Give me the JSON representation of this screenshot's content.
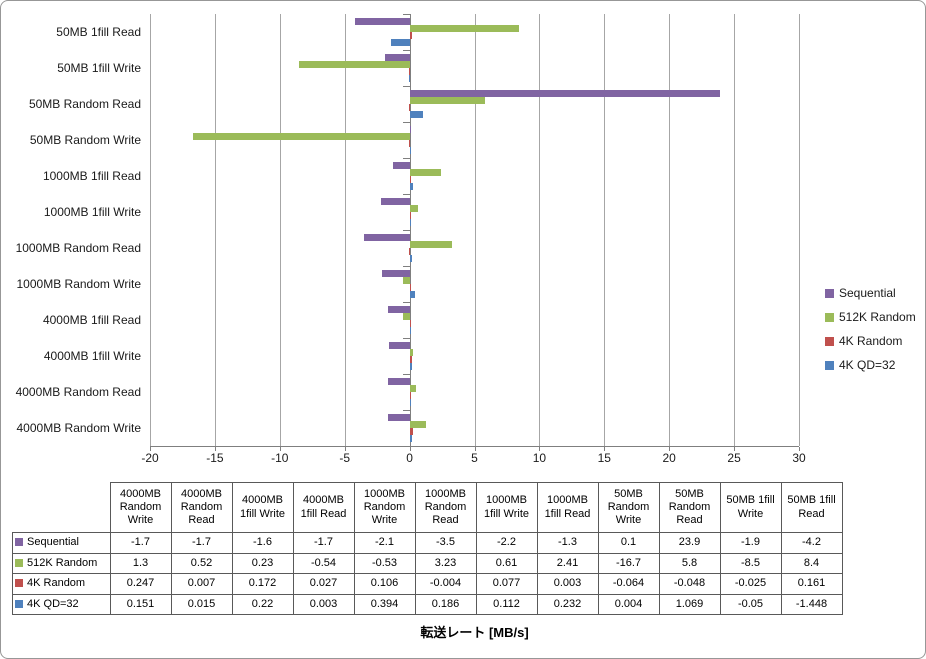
{
  "chart_data": {
    "type": "bar",
    "orientation": "horizontal",
    "title": "",
    "xlabel": "転送レート [MB/s]",
    "ylabel": "",
    "xlim": [
      -20,
      30
    ],
    "xticks": [
      -20,
      -15,
      -10,
      -5,
      0,
      5,
      10,
      15,
      20,
      25,
      30
    ],
    "grid": true,
    "legend_position": "right",
    "categories": [
      "50MB 1fill Read",
      "50MB 1fill Write",
      "50MB Random Read",
      "50MB Random Write",
      "1000MB 1fill Read",
      "1000MB 1fill Write",
      "1000MB Random Read",
      "1000MB Random Write",
      "4000MB 1fill Read",
      "4000MB 1fill Write",
      "4000MB Random Read",
      "4000MB Random Write"
    ],
    "series": [
      {
        "name": "Sequential",
        "color": "#8064A2",
        "values": [
          -4.2,
          -1.9,
          23.9,
          0.1,
          -1.3,
          -2.2,
          -3.5,
          -2.1,
          -1.7,
          -1.6,
          -1.7,
          -1.7
        ]
      },
      {
        "name": "512K Random",
        "color": "#9BBB59",
        "values": [
          8.4,
          -8.5,
          5.8,
          -16.7,
          2.41,
          0.61,
          3.23,
          -0.53,
          -0.54,
          0.23,
          0.52,
          1.3
        ]
      },
      {
        "name": "4K Random",
        "color": "#C0504D",
        "values": [
          0.161,
          -0.025,
          -0.048,
          -0.064,
          0.003,
          0.077,
          -0.004,
          0.106,
          0.027,
          0.172,
          0.007,
          0.247
        ]
      },
      {
        "name": "4K QD=32",
        "color": "#4F81BD",
        "values": [
          -1.448,
          -0.05,
          1.069,
          0.004,
          0.232,
          0.112,
          0.186,
          0.394,
          0.003,
          0.22,
          0.015,
          0.151
        ]
      }
    ]
  },
  "table": {
    "columns": [
      "4000MB Random Write",
      "4000MB Random Read",
      "4000MB 1fill Write",
      "4000MB 1fill Read",
      "1000MB Random Write",
      "1000MB Random Read",
      "1000MB 1fill Write",
      "1000MB 1fill Read",
      "50MB Random Write",
      "50MB Random Read",
      "50MB 1fill Write",
      "50MB 1fill Read"
    ],
    "rows": [
      {
        "label": "Sequential",
        "color": "#8064A2",
        "cells": [
          "-1.7",
          "-1.7",
          "-1.6",
          "-1.7",
          "-2.1",
          "-3.5",
          "-2.2",
          "-1.3",
          "0.1",
          "23.9",
          "-1.9",
          "-4.2"
        ]
      },
      {
        "label": "512K Random",
        "color": "#9BBB59",
        "cells": [
          "1.3",
          "0.52",
          "0.23",
          "-0.54",
          "-0.53",
          "3.23",
          "0.61",
          "2.41",
          "-16.7",
          "5.8",
          "-8.5",
          "8.4"
        ]
      },
      {
        "label": "4K Random",
        "color": "#C0504D",
        "cells": [
          "0.247",
          "0.007",
          "0.172",
          "0.027",
          "0.106",
          "-0.004",
          "0.077",
          "0.003",
          "-0.064",
          "-0.048",
          "-0.025",
          "0.161"
        ]
      },
      {
        "label": "4K QD=32",
        "color": "#4F81BD",
        "cells": [
          "0.151",
          "0.015",
          "0.22",
          "0.003",
          "0.394",
          "0.186",
          "0.112",
          "0.232",
          "0.004",
          "1.069",
          "-0.05",
          "-1.448"
        ]
      }
    ]
  }
}
